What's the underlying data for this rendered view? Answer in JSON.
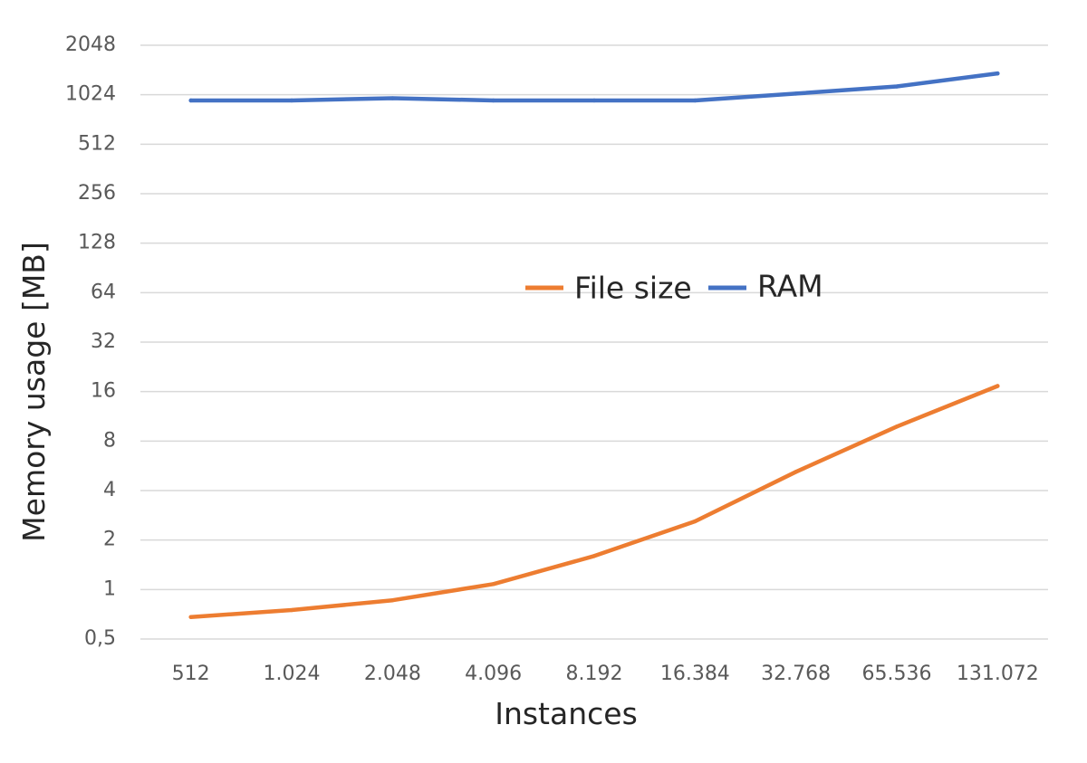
{
  "chart_data": {
    "type": "line",
    "title": "",
    "xlabel": "Instances",
    "ylabel": "Memory usage [MB]",
    "y_scale": "log2",
    "ylim": [
      0.5,
      2048
    ],
    "grid": true,
    "legend_position": "center",
    "x": [
      "512",
      "1.024",
      "2.048",
      "4.096",
      "8.192",
      "16.384",
      "32.768",
      "65.536",
      "131.072"
    ],
    "y_ticks": [
      "0,5",
      "1",
      "2",
      "4",
      "8",
      "16",
      "32",
      "64",
      "128",
      "256",
      "512",
      "1024",
      "2048"
    ],
    "y_tick_values": [
      0.5,
      1,
      2,
      4,
      8,
      16,
      32,
      64,
      128,
      256,
      512,
      1024,
      2048
    ],
    "series": [
      {
        "name": "File size",
        "color": "#ED7D31",
        "values": [
          0.68,
          0.75,
          0.86,
          1.08,
          1.6,
          2.6,
          5.2,
          9.8,
          17.3
        ]
      },
      {
        "name": "RAM",
        "color": "#4472C4",
        "values": [
          945,
          945,
          975,
          945,
          945,
          945,
          1040,
          1150,
          1380
        ]
      }
    ]
  }
}
